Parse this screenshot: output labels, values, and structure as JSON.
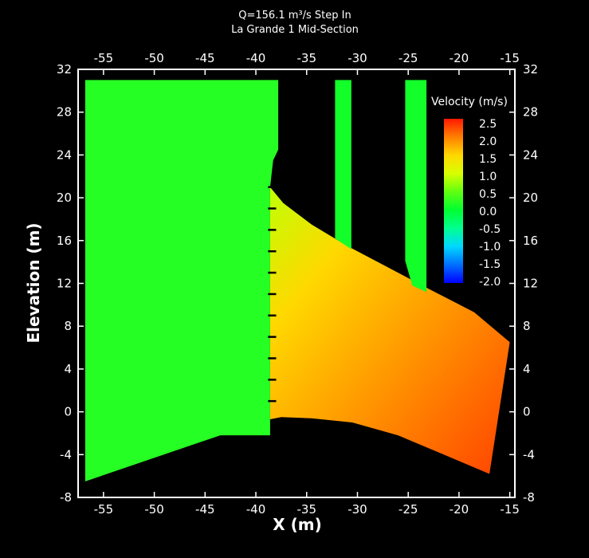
{
  "chart_data": {
    "type": "heatmap",
    "title_line1": "Q=156.1 m³/s  Step In",
    "title_line2": "La Grande 1 Mid-Section",
    "xlabel": "X (m)",
    "ylabel": "Elevation (m)",
    "xlim": [
      -57.5,
      -14.5
    ],
    "ylim": [
      -8,
      32
    ],
    "x_ticks": [
      -55,
      -50,
      -45,
      -40,
      -35,
      -30,
      -25,
      -20,
      -15
    ],
    "y_ticks": [
      -8,
      -4,
      0,
      4,
      8,
      12,
      16,
      20,
      24,
      28,
      32
    ],
    "grid": false,
    "legend": {
      "title": "Velocity (m/s)",
      "placement": "top-right",
      "min": -2.0,
      "max": 2.5,
      "labels": [
        "2.5",
        "2.0",
        "1.5",
        "1.0",
        "0.5",
        "0.0",
        "-0.5",
        "-1.0",
        "-1.5",
        "-2.0"
      ]
    },
    "color_stops": [
      {
        "value": -2.0,
        "color": "#0000ff"
      },
      {
        "value": -1.5,
        "color": "#0070ff"
      },
      {
        "value": -1.0,
        "color": "#00d8ff"
      },
      {
        "value": -0.5,
        "color": "#00ff90"
      },
      {
        "value": 0.0,
        "color": "#00ff30"
      },
      {
        "value": 0.5,
        "color": "#60ff10"
      },
      {
        "value": 1.0,
        "color": "#d8ff00"
      },
      {
        "value": 1.5,
        "color": "#ffd800"
      },
      {
        "value": 2.0,
        "color": "#ff8000"
      },
      {
        "value": 2.5,
        "color": "#ff1800"
      }
    ],
    "regions": [
      {
        "name": "upstream-reservoir",
        "velocity": 0.2,
        "polygon": [
          [
            -56.8,
            31
          ],
          [
            -37.8,
            31
          ],
          [
            -37.8,
            24.5
          ],
          [
            -38.3,
            23.5
          ],
          [
            -38.6,
            21
          ],
          [
            -38.6,
            -2.2
          ],
          [
            -43.5,
            -2.2
          ],
          [
            -56.8,
            -6.5
          ]
        ]
      },
      {
        "name": "spillway-jet",
        "velocity": 1.8,
        "polygon": [
          [
            -38.6,
            21
          ],
          [
            -37.3,
            19.5
          ],
          [
            -34.5,
            17.5
          ],
          [
            -31,
            15.5
          ],
          [
            -27,
            13.5
          ],
          [
            -23,
            11.5
          ],
          [
            -18.5,
            9.3
          ],
          [
            -15,
            6.5
          ],
          [
            -17,
            -5.8
          ],
          [
            -21.5,
            -4
          ],
          [
            -26,
            -2.2
          ],
          [
            -30.5,
            -1
          ],
          [
            -34.5,
            -0.6
          ],
          [
            -37.5,
            -0.5
          ],
          [
            -38.6,
            -0.7
          ]
        ]
      },
      {
        "name": "upper-channel-1",
        "velocity": 0.1,
        "polygon": [
          [
            -32.2,
            31
          ],
          [
            -30.6,
            31
          ],
          [
            -30.6,
            15.2
          ],
          [
            -32.2,
            16.2
          ]
        ]
      },
      {
        "name": "upper-channel-2",
        "velocity": 0.1,
        "polygon": [
          [
            -25.3,
            31
          ],
          [
            -23.2,
            31
          ],
          [
            -23.2,
            11.2
          ],
          [
            -24.6,
            11.8
          ],
          [
            -25.3,
            14.1
          ]
        ]
      }
    ],
    "guide_vanes_y": [
      21,
      19,
      17,
      15,
      13,
      11,
      9,
      7,
      5,
      3,
      1
    ]
  }
}
